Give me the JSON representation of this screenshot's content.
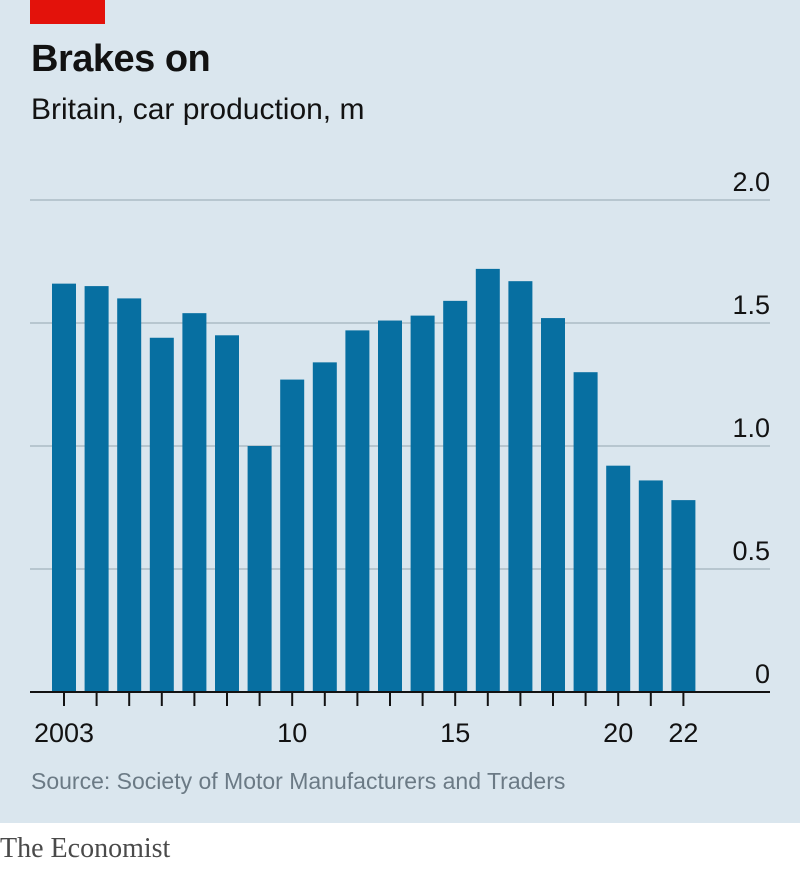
{
  "header": {
    "title": "Brakes on",
    "subtitle": "Britain, car production, m"
  },
  "footer": {
    "source": "Source: Society of Motor Manufacturers and Traders",
    "brand": "The Economist"
  },
  "colors": {
    "background": "#dae6ee",
    "bar": "#076fa1",
    "accent": "#e3120b",
    "grid": "#b7c6cf"
  },
  "chart_data": {
    "type": "bar",
    "title": "Brakes on",
    "subtitle": "Britain, car production, m",
    "xlabel": "",
    "ylabel": "",
    "ylim": [
      0,
      2.0
    ],
    "yticks": [
      "0",
      "0.5",
      "1.0",
      "1.5",
      "2.0"
    ],
    "categories": [
      "2003",
      "2004",
      "2005",
      "2006",
      "2007",
      "2008",
      "2009",
      "2010",
      "2011",
      "2012",
      "2013",
      "2014",
      "2015",
      "2016",
      "2017",
      "2018",
      "2019",
      "2020",
      "2021",
      "2022"
    ],
    "xtick_labels": [
      {
        "category": "2003",
        "label": "2003"
      },
      {
        "category": "2010",
        "label": "10"
      },
      {
        "category": "2015",
        "label": "15"
      },
      {
        "category": "2020",
        "label": "20"
      },
      {
        "category": "2022",
        "label": "22"
      }
    ],
    "values": [
      1.66,
      1.65,
      1.6,
      1.44,
      1.54,
      1.45,
      1.0,
      1.27,
      1.34,
      1.47,
      1.51,
      1.53,
      1.59,
      1.72,
      1.67,
      1.52,
      1.3,
      0.92,
      0.86,
      0.78
    ],
    "legend": "none",
    "grid": true
  }
}
